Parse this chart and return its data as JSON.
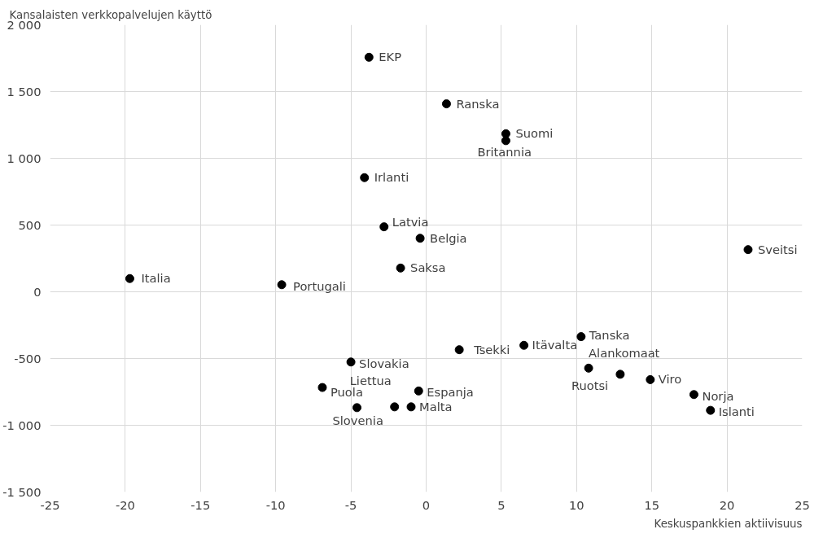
{
  "chart_data": {
    "type": "scatter",
    "ylabel": "Kansalaisten verkkopalvelujen käyttö",
    "xlabel": "Keskuspankkien aktiivisuus",
    "x": [
      -3.8,
      1.35,
      5.3,
      5.3,
      -4.1,
      -2.8,
      -0.4,
      21.4,
      -1.7,
      -19.7,
      -9.6,
      10.3,
      2.2,
      6.5,
      -5.0,
      10.8,
      12.9,
      14.9,
      -6.9,
      -0.5,
      17.8,
      -4.6,
      -2.1,
      -1.0,
      18.9
    ],
    "values": [
      1757,
      1408,
      1184,
      1132,
      855,
      487,
      401,
      316,
      178,
      99,
      53,
      -336,
      -434,
      -401,
      -526,
      -572,
      -618,
      -658,
      -717,
      -743,
      -770,
      -868,
      -862,
      -862,
      -888
    ],
    "color": "#000000",
    "marker": "circle",
    "grid": true,
    "legend": false,
    "xlim": [
      -25,
      25
    ],
    "xticks": [
      -25,
      -20,
      -15,
      -10,
      -5,
      0,
      5,
      10,
      15,
      20,
      25
    ],
    "ylim": [
      -1500,
      2000
    ],
    "yticks": [
      {
        "value": -1500,
        "label": "-1 500"
      },
      {
        "value": -1000,
        "label": "-1 000"
      },
      -500,
      0,
      500,
      {
        "value": 1000,
        "label": "1 000"
      },
      {
        "value": 1500,
        "label": "1 500"
      },
      {
        "value": 2000,
        "label": "2 000"
      }
    ],
    "annotations": [
      {
        "text": "EKP",
        "x": -3.8,
        "y": 1757
      },
      {
        "text": "Ranska",
        "x": 1.35,
        "y": 1408
      },
      {
        "text": "Suomi",
        "x": 5.3,
        "y": 1184
      },
      {
        "text": "Britannia",
        "x": 5.3,
        "y": 1132
      },
      {
        "text": "Irlanti",
        "x": -4.1,
        "y": 855
      },
      {
        "text": "Latvia",
        "x": -2.8,
        "y": 487
      },
      {
        "text": "Belgia",
        "x": -0.4,
        "y": 401
      },
      {
        "text": "Sveitsi",
        "x": 21.4,
        "y": 316
      },
      {
        "text": "Saksa",
        "x": -1.7,
        "y": 178
      },
      {
        "text": "Italia",
        "x": -19.7,
        "y": 99
      },
      {
        "text": "Portugali",
        "x": -9.6,
        "y": 53
      },
      {
        "text": "Tanska",
        "x": 10.3,
        "y": -336
      },
      {
        "text": "Tsekki",
        "x": 2.2,
        "y": -434
      },
      {
        "text": "Itävalta",
        "x": 6.5,
        "y": -401
      },
      {
        "text": "Slovakia",
        "x": -5.0,
        "y": -526
      },
      {
        "text": "Alankomaat",
        "x": 10.8,
        "y": -572
      },
      {
        "text": "Ruotsi",
        "x": 12.9,
        "y": -618
      },
      {
        "text": "Viro",
        "x": 14.9,
        "y": -658
      },
      {
        "text": "Puola",
        "x": -6.9,
        "y": -717
      },
      {
        "text": "Espanja",
        "x": -0.5,
        "y": -743
      },
      {
        "text": "Norja",
        "x": 17.8,
        "y": -770
      },
      {
        "text": "Slovenia",
        "x": -4.6,
        "y": -868
      },
      {
        "text": "Liettua",
        "x": -2.1,
        "y": -862
      },
      {
        "text": "Malta",
        "x": -1.0,
        "y": -862
      },
      {
        "text": "Islanti",
        "x": 18.9,
        "y": -888
      }
    ]
  }
}
